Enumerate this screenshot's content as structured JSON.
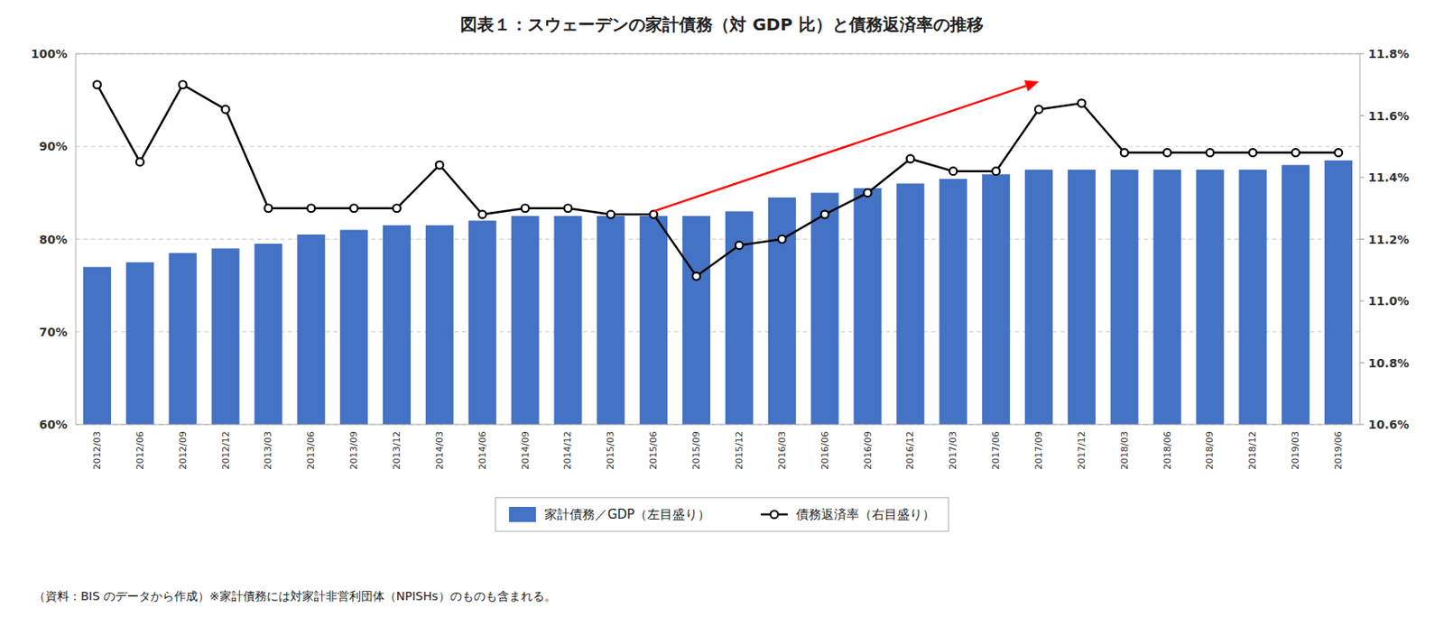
{
  "chart_data": {
    "type": "bar",
    "title": "図表１：スウェーデンの家計債務（対 GDP 比）と債務返済率の推移",
    "footnote": "（資料：BIS のデータから作成）※家計債務には対家計非営利団体（NPISHs）のものも含まれる。",
    "categories": [
      "2012/03",
      "2012/06",
      "2012/09",
      "2012/12",
      "2013/03",
      "2013/06",
      "2013/09",
      "2013/12",
      "2014/03",
      "2014/06",
      "2014/09",
      "2014/12",
      "2015/03",
      "2015/06",
      "2015/09",
      "2015/12",
      "2016/03",
      "2016/06",
      "2016/09",
      "2016/12",
      "2017/03",
      "2017/06",
      "2017/09",
      "2017/12",
      "2018/03",
      "2018/06",
      "2018/09",
      "2018/12",
      "2019/03",
      "2019/06"
    ],
    "series": [
      {
        "name": "家計債務／GDP（左目盛り）",
        "type": "bar",
        "color": "#4472C4",
        "values": [
          77.0,
          77.5,
          78.5,
          79.0,
          79.5,
          80.5,
          81.0,
          81.5,
          81.5,
          82.0,
          82.5,
          82.5,
          82.5,
          82.5,
          82.5,
          83.0,
          84.5,
          85.0,
          85.5,
          86.0,
          86.5,
          87.0,
          87.5,
          87.5,
          87.5,
          87.5,
          87.5,
          87.5,
          88.0,
          88.5
        ]
      },
      {
        "name": "債務返済率（右目盛り）",
        "type": "line",
        "axis": "y2",
        "color": "#000000",
        "marker": "circle",
        "values": [
          11.7,
          11.45,
          11.7,
          11.62,
          11.3,
          11.3,
          11.3,
          11.3,
          11.44,
          11.28,
          11.3,
          11.3,
          11.28,
          11.28,
          11.08,
          11.18,
          11.2,
          11.28,
          11.35,
          11.46,
          11.42,
          11.42,
          11.62,
          11.64,
          11.48,
          11.48,
          11.48,
          11.48,
          11.48,
          11.48
        ]
      }
    ],
    "ylim": [
      60,
      100
    ],
    "yticks": [
      {
        "value": 60,
        "label": "60%"
      },
      {
        "value": 70,
        "label": "70%"
      },
      {
        "value": 80,
        "label": "80%"
      },
      {
        "value": 90,
        "label": "90%"
      },
      {
        "value": 100,
        "label": "100%"
      }
    ],
    "y2lim": [
      10.6,
      11.8
    ],
    "y2ticks": [
      {
        "value": 10.6,
        "label": "10.6%"
      },
      {
        "value": 10.8,
        "label": "10.8%"
      },
      {
        "value": 11.0,
        "label": "11.0%"
      },
      {
        "value": 11.2,
        "label": "11.2%"
      },
      {
        "value": 11.4,
        "label": "11.4%"
      },
      {
        "value": 11.6,
        "label": "11.6%"
      },
      {
        "value": 11.8,
        "label": "11.8%"
      }
    ],
    "grid": true,
    "legend": "bottom",
    "annotations": [
      {
        "type": "arrow",
        "x_from": "2015/06",
        "y_from": 83.0,
        "x_to": "2017/09",
        "y_to": 97.0,
        "color": "#FF0000"
      }
    ]
  }
}
